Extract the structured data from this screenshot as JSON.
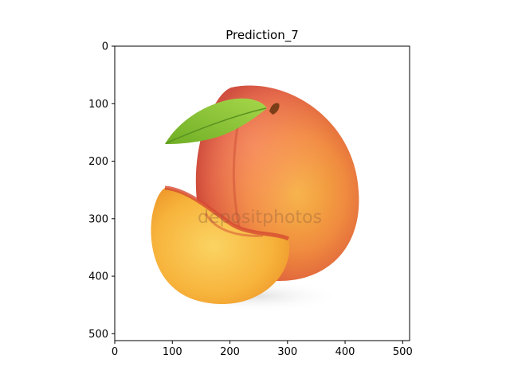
{
  "chart_data": {
    "type": "image",
    "title": "Prediction_7",
    "xlabel": "",
    "ylabel": "",
    "xlim": [
      0,
      512
    ],
    "ylim": [
      512,
      0
    ],
    "x_ticks": [
      0,
      100,
      200,
      300,
      400,
      500
    ],
    "y_ticks": [
      0,
      100,
      200,
      300,
      400,
      500
    ],
    "grid": false,
    "image": {
      "subject": "peach with leaf and peach slice",
      "watermark": "depositphotos"
    }
  },
  "colors": {
    "peach_red": "#d9483a",
    "peach_orange": "#f08a3c",
    "peach_yellow": "#f5b640",
    "flesh": "#f9c24a",
    "leaf": "#7cbb2e",
    "stem": "#8a4a1e",
    "axis": "#000000"
  }
}
